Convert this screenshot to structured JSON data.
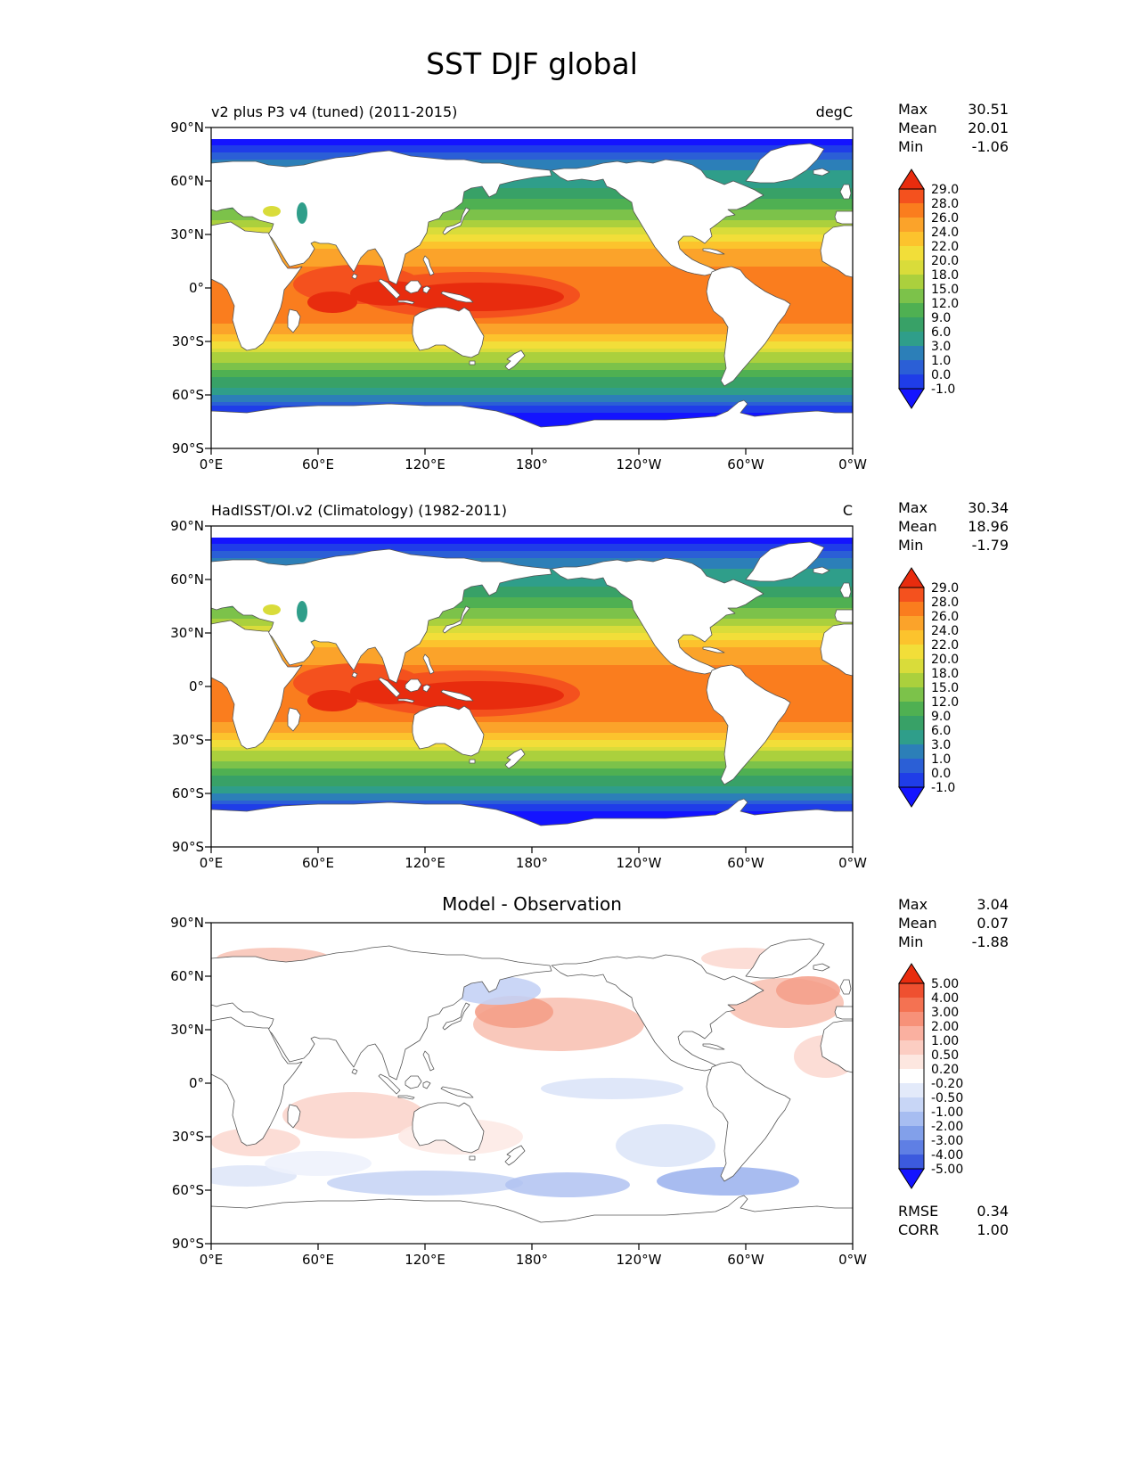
{
  "title": "SST DJF global",
  "axes": {
    "lat_ticks": [
      "90°N",
      "60°N",
      "30°N",
      "0°",
      "30°S",
      "60°S",
      "90°S"
    ],
    "lon_ticks": [
      "0°E",
      "60°E",
      "120°E",
      "180°",
      "120°W",
      "60°W",
      "0°W"
    ]
  },
  "panels": [
    {
      "title": "v2 plus P3 v4 (tuned) (2011-2015)",
      "units": "degC",
      "stats": [
        {
          "label": "Max",
          "value": "30.51"
        },
        {
          "label": "Mean",
          "value": "20.01"
        },
        {
          "label": "Min",
          "value": "-1.06"
        }
      ],
      "colorbar": {
        "tick_labels": [
          "29.0",
          "28.0",
          "26.0",
          "24.0",
          "22.0",
          "20.0",
          "18.0",
          "15.0",
          "12.0",
          "9.0",
          "6.0",
          "3.0",
          "1.0",
          "0.0",
          "-1.0"
        ],
        "colors": [
          "#e82c0e",
          "#f4511e",
          "#fa7d1e",
          "#fba32a",
          "#fcc32d",
          "#f2de39",
          "#d9dc3a",
          "#abd03d",
          "#7cc24a",
          "#4fb052",
          "#38a167",
          "#2f9e8a",
          "#2c7fb8",
          "#2b5fd6",
          "#1f3de8",
          "#1414ff"
        ]
      }
    },
    {
      "title": "HadISST/OI.v2 (Climatology) (1982-2011)",
      "units": "C",
      "stats": [
        {
          "label": "Max",
          "value": "30.34"
        },
        {
          "label": "Mean",
          "value": "18.96"
        },
        {
          "label": "Min",
          "value": "-1.79"
        }
      ],
      "colorbar": {
        "tick_labels": [
          "29.0",
          "28.0",
          "26.0",
          "24.0",
          "22.0",
          "20.0",
          "18.0",
          "15.0",
          "12.0",
          "9.0",
          "6.0",
          "3.0",
          "1.0",
          "0.0",
          "-1.0"
        ],
        "colors": [
          "#e82c0e",
          "#f4511e",
          "#fa7d1e",
          "#fba32a",
          "#fcc32d",
          "#f2de39",
          "#d9dc3a",
          "#abd03d",
          "#7cc24a",
          "#4fb052",
          "#38a167",
          "#2f9e8a",
          "#2c7fb8",
          "#2b5fd6",
          "#1f3de8",
          "#1414ff"
        ]
      }
    },
    {
      "title": "Model - Observation",
      "units": "",
      "stats": [
        {
          "label": "Max",
          "value": "3.04"
        },
        {
          "label": "Mean",
          "value": "0.07"
        },
        {
          "label": "Min",
          "value": "-1.88"
        }
      ],
      "colorbar": {
        "tick_labels": [
          "5.00",
          "4.00",
          "3.00",
          "2.00",
          "1.00",
          "0.50",
          "0.20",
          "-0.20",
          "-0.50",
          "-1.00",
          "-2.00",
          "-3.00",
          "-4.00",
          "-5.00"
        ],
        "colors": [
          "#e82c0e",
          "#ef5030",
          "#f47252",
          "#f79179",
          "#fab0a0",
          "#fccdc2",
          "#fde7e0",
          "#ffffff",
          "#e3eafa",
          "#c8d6f6",
          "#a7bdf1",
          "#82a0ea",
          "#5f7fe4",
          "#3c5ade",
          "#1414ff"
        ]
      },
      "extra_stats": [
        {
          "label": "RMSE",
          "value": "0.34"
        },
        {
          "label": "CORR",
          "value": "1.00"
        }
      ]
    }
  ],
  "chart_data": {
    "type": "heatmap",
    "title": "SST DJF global",
    "layout": "three stacked global equirectangular maps; lon axis 0°E through 180° to 0°W left-to-right; lat 90°N top to 90°S bottom; discrete filled-contour color bars at right of each panel",
    "lat_ticks_deg": [
      90,
      60,
      30,
      0,
      -30,
      -60,
      -90
    ],
    "lon_ticks_deg": [
      0,
      60,
      120,
      180,
      240,
      300,
      360
    ],
    "panels": [
      {
        "name": "v2 plus P3 v4 (tuned) (2011-2015)",
        "units": "degC",
        "max": 30.51,
        "mean": 20.01,
        "min": -1.06,
        "contour_levels": [
          -1.0,
          0.0,
          1.0,
          3.0,
          6.0,
          9.0,
          12.0,
          15.0,
          18.0,
          20.0,
          22.0,
          24.0,
          26.0,
          28.0,
          29.0
        ]
      },
      {
        "name": "HadISST/OI.v2 (Climatology) (1982-2011)",
        "units": "C",
        "max": 30.34,
        "mean": 18.96,
        "min": -1.79,
        "contour_levels": [
          -1.0,
          0.0,
          1.0,
          3.0,
          6.0,
          9.0,
          12.0,
          15.0,
          18.0,
          20.0,
          22.0,
          24.0,
          26.0,
          28.0,
          29.0
        ]
      },
      {
        "name": "Model - Observation",
        "units": "degC",
        "max": 3.04,
        "mean": 0.07,
        "min": -1.88,
        "rmse": 0.34,
        "corr": 1.0,
        "contour_levels": [
          -5.0,
          -4.0,
          -3.0,
          -2.0,
          -1.0,
          -0.5,
          -0.2,
          0.2,
          0.5,
          1.0,
          2.0,
          3.0,
          4.0,
          5.0
        ]
      }
    ],
    "zonal_sst_profile": {
      "lat": [
        90,
        80,
        70,
        60,
        50,
        40,
        30,
        20,
        10,
        0,
        -10,
        -20,
        -30,
        -40,
        -50,
        -55,
        -60,
        -65,
        -70,
        -90
      ],
      "sst_degC": [
        -1.5,
        -1.2,
        1.5,
        4.5,
        8.5,
        14,
        20,
        24.5,
        26.5,
        27.5,
        27.5,
        26,
        22,
        16,
        9.5,
        6,
        2.5,
        0.2,
        -1.2,
        -1.5
      ]
    },
    "warm_pool_regions": [
      {
        "lon": 145,
        "lat": -4,
        "rlon": 62,
        "rlat": 13,
        "level": "28-29"
      },
      {
        "lon": 82,
        "lat": 2,
        "rlon": 36,
        "rlat": 11,
        "level": "28-29"
      },
      {
        "lon": 150,
        "lat": -5,
        "rlon": 48,
        "rlat": 8,
        "level": ">29"
      },
      {
        "lon": 100,
        "lat": -3,
        "rlon": 22,
        "rlat": 7,
        "level": ">29"
      },
      {
        "lon": 68,
        "lat": -8,
        "rlon": 14,
        "rlat": 6,
        "level": ">29"
      }
    ],
    "difference_patches": [
      {
        "lon": 195,
        "lat": 33,
        "rlon": 48,
        "rlat": 15,
        "color": "#f8c2b4",
        "opacity": 0.9
      },
      {
        "lon": 170,
        "lat": 40,
        "rlon": 22,
        "rlat": 9,
        "color": "#f49e88",
        "opacity": 0.9
      },
      {
        "lon": 322,
        "lat": 45,
        "rlon": 33,
        "rlat": 14,
        "color": "#f8c2b4",
        "opacity": 0.9
      },
      {
        "lon": 335,
        "lat": 52,
        "rlon": 18,
        "rlat": 8,
        "color": "#f49e88",
        "opacity": 0.85
      },
      {
        "lon": 35,
        "lat": 70,
        "rlon": 32,
        "rlat": 6,
        "color": "#f8c2b4",
        "opacity": 0.85
      },
      {
        "lon": 300,
        "lat": 70,
        "rlon": 25,
        "rlat": 6,
        "color": "#fbd5cc",
        "opacity": 0.8
      },
      {
        "lon": 80,
        "lat": -18,
        "rlon": 40,
        "rlat": 13,
        "color": "#fbd5cc",
        "opacity": 0.9
      },
      {
        "lon": 25,
        "lat": -33,
        "rlon": 25,
        "rlat": 8,
        "color": "#fbd5cc",
        "opacity": 0.8
      },
      {
        "lon": 345,
        "lat": 15,
        "rlon": 18,
        "rlat": 12,
        "color": "#fbd5cc",
        "opacity": 0.8
      },
      {
        "lon": 160,
        "lat": 52,
        "rlon": 25,
        "rlat": 8,
        "color": "#c4d2f5",
        "opacity": 0.9
      },
      {
        "lon": 225,
        "lat": -3,
        "rlon": 40,
        "rlat": 6,
        "color": "#dbe4f8",
        "opacity": 0.9
      },
      {
        "lon": 255,
        "lat": -35,
        "rlon": 28,
        "rlat": 12,
        "color": "#dbe4f8",
        "opacity": 0.85
      },
      {
        "lon": 290,
        "lat": -55,
        "rlon": 40,
        "rlat": 8,
        "color": "#9fb5ee",
        "opacity": 0.9
      },
      {
        "lon": 120,
        "lat": -56,
        "rlon": 55,
        "rlat": 7,
        "color": "#c4d2f5",
        "opacity": 0.85
      },
      {
        "lon": 200,
        "lat": -57,
        "rlon": 35,
        "rlat": 7,
        "color": "#b0c2f1",
        "opacity": 0.85
      },
      {
        "lon": 20,
        "lat": -52,
        "rlon": 28,
        "rlat": 6,
        "color": "#dbe4f8",
        "opacity": 0.8
      },
      {
        "lon": 60,
        "lat": -45,
        "rlon": 30,
        "rlat": 7,
        "color": "#eef2fc",
        "opacity": 0.9
      },
      {
        "lon": 140,
        "lat": -30,
        "rlon": 35,
        "rlat": 10,
        "color": "#fdeae5",
        "opacity": 0.9
      }
    ]
  }
}
